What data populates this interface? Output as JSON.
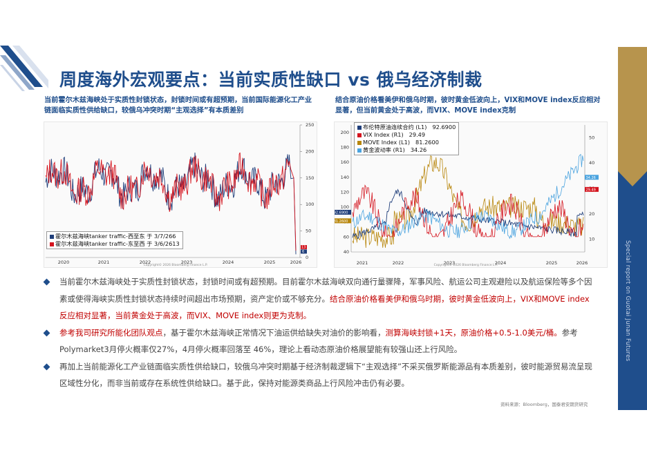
{
  "header": {
    "title": "周度海外宏观要点：当前实质性缺口 vs 俄乌经济制裁"
  },
  "left_panel": {
    "subtitle": "当前霍尔木兹海峡处于实质性封锁状态，封锁时间或有超预期，当前国际能源化工产业链面临实质性供给缺口，较俄乌冲突时期“主观选择”有本质差别",
    "legend": [
      {
        "label": "霍尔木兹海峡tanker traffic-西至东",
        "date": "于 3/7/26",
        "value": "6",
        "color": "#1f3e7a"
      },
      {
        "label": "霍尔木兹海峡tanker traffic-东至西",
        "date": "于 3/6/26",
        "value": "13",
        "color": "#d4141e"
      }
    ],
    "y_ticks": [
      "250",
      "200",
      "150",
      "100",
      "50",
      "0"
    ],
    "x_ticks": [
      "2020",
      "2021",
      "2022",
      "2023",
      "2024",
      "2025",
      "2026"
    ],
    "end_labels": [
      "6",
      "13"
    ]
  },
  "right_panel": {
    "subtitle": "结合原油价格看美伊和俄乌时期，彼时黄金低波向上，VIX和MOVE index反应相对显著，但当前黄金处于高波，而VIX、MOVE index克制",
    "legend": [
      {
        "label": "布伦特原油连续合约 (L1)",
        "value": "92.6900",
        "color": "#1f3e7a"
      },
      {
        "label": "VIX Index (R1)",
        "value": "29.49",
        "color": "#d4141e"
      },
      {
        "label": "MOVE Index (L1)",
        "value": "81.2600",
        "color": "#b8860b"
      },
      {
        "label": "黄金波动率 (R1)",
        "value": "34.26",
        "color": "#4aa3df"
      }
    ],
    "y_left_ticks": [
      "200",
      "180",
      "160",
      "140",
      "120",
      "100",
      "80",
      "60",
      "40"
    ],
    "y_right_ticks": [
      "50",
      "40",
      "30",
      "20",
      "10"
    ],
    "x_ticks": [
      "2021",
      "2022",
      "2023",
      "2024",
      "2025",
      "2026"
    ],
    "left_end_labels": [
      "92.6900",
      "81.2600"
    ],
    "right_end_labels": [
      "34.26",
      "29.49"
    ]
  },
  "chart_footer_text": "Copyright© 2026 Bloomberg Finance L.P.",
  "bullets": [
    {
      "parts": [
        {
          "text": "当前霍尔木兹海峡处于实质性封锁状态，封锁时间或有超预期。目前霍尔木兹海峡双向通行量骤降，军事风险、航运公司主观避险以及航运保险等多个因素或使得海峡实质性封锁状态持续时间超出市场预期，资产定价或不够充分。",
          "red": false
        },
        {
          "text": "结合原油价格看美伊和俄乌时期，彼时黄金低波向上，VIX和MOVE index反应相对显著，当前黄金处于高波，而VIX、MOVE index则更为克制。",
          "red": true
        }
      ]
    },
    {
      "parts": [
        {
          "text": "参考我司研究所能化团队观点",
          "red": true
        },
        {
          "text": "，基于霍尔木兹海峡正常情况下油运供给缺失对油价的影响看，",
          "red": false
        },
        {
          "text": "测算海峡封锁+1天，原油价格+0.5-1.0美元/桶。",
          "red": true
        },
        {
          "text": "参考Polymarket3月停火概率仅27%，4月停火概率回落至 46%，理论上看动态原油价格展望能有较强山还上行风险。",
          "red": false
        }
      ]
    },
    {
      "parts": [
        {
          "text": "再加上当前能源化工产业链面临实质性供给缺口，较俄乌冲突时期基于经济制裁逻辑下“主观选择”不采买俄罗斯能源品有本质差别，彼时能源贸易流呈现区域性分化，而非当前或存在系统性供给缺口。基于此，保持对能源类商品上行风险冲击仍有必要。",
          "red": false
        }
      ]
    }
  ],
  "source": "资料来源：Bloomberg，国泰君安期货研究",
  "sidebar": {
    "vertical_text": "Special report on Guotai Junan Futures"
  },
  "colors": {
    "brand_blue": "#1f4e8c",
    "gold": "#b7944d",
    "highlight_red": "#c00000"
  }
}
